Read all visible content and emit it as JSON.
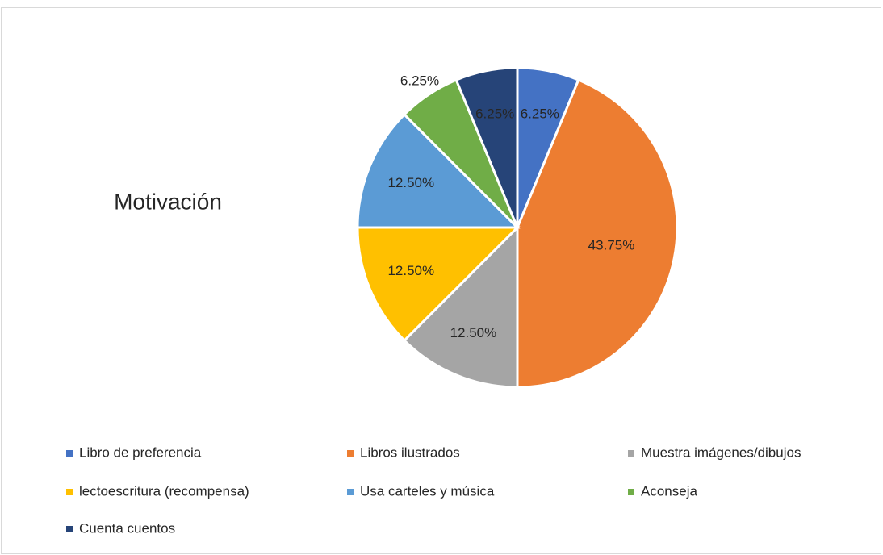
{
  "chart_data": {
    "type": "pie",
    "title": "Motivación",
    "categories": [
      "Libro de preferencia",
      "Libros ilustrados",
      "Muestra imágenes/dibujos",
      "lectoescritura (recompensa)",
      "Usa carteles y música",
      "Aconseja",
      "Cuenta cuentos"
    ],
    "values": [
      6.25,
      43.75,
      12.5,
      12.5,
      12.5,
      6.25,
      6.25
    ],
    "value_labels": [
      "6.25%",
      "43.75%",
      "12.50%",
      "12.50%",
      "12.50%",
      "6.25%",
      "6.25%"
    ],
    "colors": [
      "#4472c4",
      "#ed7d31",
      "#a5a5a5",
      "#ffc000",
      "#5b9bd5",
      "#70ad47",
      "#264478"
    ],
    "legend": "bottom"
  }
}
